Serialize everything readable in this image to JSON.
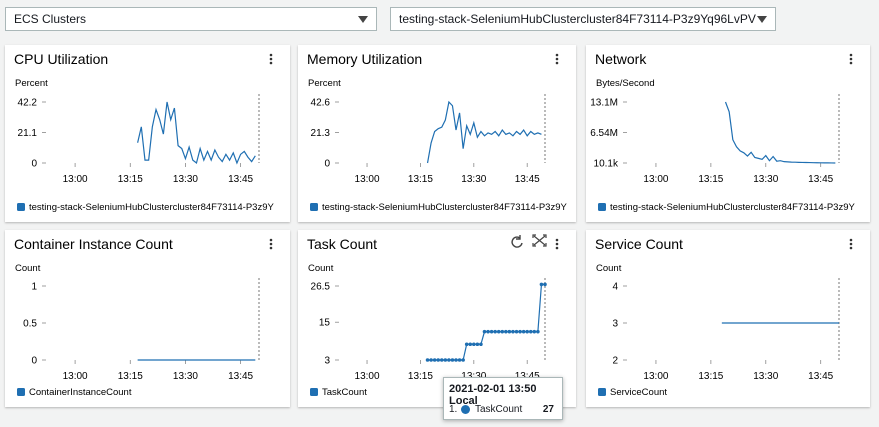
{
  "controls": {
    "service_select": "ECS Clusters",
    "cluster_select": "testing-stack-SeleniumHubClustercluster84F73114-P3z9Yq96LvPV"
  },
  "chart_data": [
    {
      "type": "line",
      "title": "CPU Utilization",
      "y_label": "Percent",
      "x": [
        "13:17",
        "13:18",
        "13:19",
        "13:20",
        "13:21",
        "13:22",
        "13:23",
        "13:24",
        "13:25",
        "13:26",
        "13:27",
        "13:28",
        "13:29",
        "13:30",
        "13:31",
        "13:32",
        "13:33",
        "13:34",
        "13:35",
        "13:36",
        "13:37",
        "13:38",
        "13:39",
        "13:40",
        "13:41",
        "13:42",
        "13:43",
        "13:44",
        "13:45",
        "13:46",
        "13:47",
        "13:48",
        "13:49"
      ],
      "series": [
        {
          "name": "testing-stack-SeleniumHubClustercluster84F73114-P3z9Y",
          "color": "#1f6fb2",
          "values": [
            14,
            25,
            2,
            2,
            25,
            37,
            30,
            20,
            42.2,
            30,
            38,
            12,
            10,
            3,
            11,
            2,
            0,
            10,
            2,
            8,
            2,
            9,
            4,
            1,
            6,
            2,
            7,
            0,
            6,
            8,
            4,
            1,
            5
          ]
        }
      ],
      "xlim": [
        "12:51",
        "13:50"
      ],
      "xticks": [
        "13:00",
        "13:15",
        "13:30",
        "13:45"
      ],
      "ylim": [
        0,
        42.2
      ],
      "yticks": [
        0,
        21.1,
        42.2
      ]
    },
    {
      "type": "line",
      "title": "Memory Utilization",
      "y_label": "Percent",
      "x": [
        "13:17",
        "13:18",
        "13:19",
        "13:20",
        "13:21",
        "13:22",
        "13:23",
        "13:24",
        "13:25",
        "13:26",
        "13:27",
        "13:28",
        "13:29",
        "13:30",
        "13:31",
        "13:32",
        "13:33",
        "13:34",
        "13:35",
        "13:36",
        "13:37",
        "13:38",
        "13:39",
        "13:40",
        "13:41",
        "13:42",
        "13:43",
        "13:44",
        "13:45",
        "13:46",
        "13:47",
        "13:48",
        "13:49"
      ],
      "series": [
        {
          "name": "testing-stack-SeleniumHubClustercluster84F73114-P3z9Y",
          "color": "#1f6fb2",
          "values": [
            0,
            14,
            22,
            24,
            25,
            30,
            42.6,
            40,
            23,
            35,
            10,
            26,
            20,
            28,
            18,
            22,
            19,
            21,
            20,
            22,
            19,
            23,
            20,
            21,
            19,
            22,
            20,
            23,
            19,
            22,
            20,
            21,
            20
          ]
        }
      ],
      "xlim": [
        "12:51",
        "13:50"
      ],
      "xticks": [
        "13:00",
        "13:15",
        "13:30",
        "13:45"
      ],
      "ylim": [
        0,
        42.6
      ],
      "yticks": [
        0,
        21.3,
        42.6
      ]
    },
    {
      "type": "line",
      "title": "Network",
      "y_label": "Bytes/Second",
      "x": [
        "13:19",
        "13:20",
        "13:21",
        "13:22",
        "13:23",
        "13:24",
        "13:25",
        "13:26",
        "13:27",
        "13:28",
        "13:29",
        "13:30",
        "13:31",
        "13:32",
        "13:33",
        "13:34",
        "13:35",
        "13:36",
        "13:37",
        "13:38",
        "13:39",
        "13:40",
        "13:41",
        "13:42",
        "13:43",
        "13:44",
        "13:45",
        "13:46",
        "13:47",
        "13:48",
        "13:49"
      ],
      "series": [
        {
          "name": "testing-stack-SeleniumHubClustercluster84F73114-P3z9Y",
          "color": "#1f6fb2",
          "values": [
            13100000,
            11000000,
            5000000,
            3500000,
            2600000,
            2200000,
            1500000,
            2300000,
            1200000,
            1000000,
            800000,
            1600000,
            500000,
            1400000,
            400000,
            500000,
            300000,
            250000,
            200000,
            180000,
            150000,
            130000,
            110000,
            100000,
            80000,
            70000,
            50000,
            40000,
            30000,
            20000,
            10100
          ]
        }
      ],
      "xlim": [
        "12:51",
        "13:50"
      ],
      "xticks": [
        "13:00",
        "13:15",
        "13:30",
        "13:45"
      ],
      "ylim": [
        10100,
        13100000
      ],
      "yticks": [
        {
          "value": 10100,
          "label": "10.1k"
        },
        {
          "value": 6540000,
          "label": "6.54M"
        },
        {
          "value": 13100000,
          "label": "13.1M"
        }
      ]
    },
    {
      "type": "line",
      "title": "Container Instance Count",
      "y_label": "Count",
      "x": [
        "13:17",
        "13:49"
      ],
      "series": [
        {
          "name": "ContainerInstanceCount",
          "color": "#1f6fb2",
          "values": [
            0,
            0
          ]
        }
      ],
      "xlim": [
        "12:51",
        "13:50"
      ],
      "xticks": [
        "13:00",
        "13:15",
        "13:30",
        "13:45"
      ],
      "ylim": [
        0,
        1
      ],
      "yticks": [
        0,
        0.5,
        1
      ]
    },
    {
      "type": "line",
      "title": "Task Count",
      "y_label": "Count",
      "markers": true,
      "x": [
        "13:17",
        "13:18",
        "13:19",
        "13:20",
        "13:21",
        "13:22",
        "13:23",
        "13:24",
        "13:25",
        "13:26",
        "13:27",
        "13:28",
        "13:29",
        "13:30",
        "13:31",
        "13:32",
        "13:33",
        "13:34",
        "13:35",
        "13:36",
        "13:37",
        "13:38",
        "13:39",
        "13:40",
        "13:41",
        "13:42",
        "13:43",
        "13:44",
        "13:45",
        "13:46",
        "13:47",
        "13:48",
        "13:49",
        "13:50"
      ],
      "series": [
        {
          "name": "TaskCount",
          "color": "#1f6fb2",
          "values": [
            3,
            3,
            3,
            3,
            3,
            3,
            3,
            3,
            3,
            3,
            3,
            8,
            8,
            8,
            8,
            8,
            12,
            12,
            12,
            12,
            12,
            12,
            12,
            12,
            12,
            12,
            12,
            12,
            12,
            12,
            12,
            12,
            27,
            27
          ]
        }
      ],
      "xlim": [
        "12:51",
        "13:50"
      ],
      "xticks": [
        "13:00",
        "13:15",
        "13:30",
        "13:45"
      ],
      "ylim": [
        3,
        26.5
      ],
      "yticks": [
        3,
        15,
        26.5
      ]
    },
    {
      "type": "line",
      "title": "Service Count",
      "y_label": "Count",
      "x": [
        "13:18",
        "13:50"
      ],
      "series": [
        {
          "name": "ServiceCount",
          "color": "#1f6fb2",
          "values": [
            3,
            3
          ]
        }
      ],
      "xlim": [
        "12:51",
        "13:50"
      ],
      "xticks": [
        "13:00",
        "13:15",
        "13:30",
        "13:45"
      ],
      "ylim": [
        2,
        4
      ],
      "yticks": [
        2,
        3,
        4
      ]
    }
  ],
  "tooltip": {
    "title": "2021-02-01 13:50 Local",
    "items": [
      {
        "index": "1.",
        "name": "TaskCount",
        "value": 27
      }
    ]
  }
}
